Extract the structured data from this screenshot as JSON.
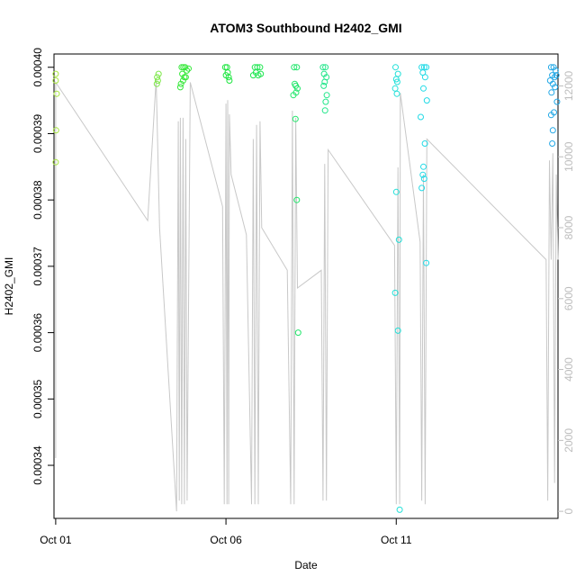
{
  "chart_data": {
    "type": "scatter",
    "title": "ATOM3 Southbound H2402_GMI",
    "xlabel": "Date",
    "ylabel": "H2402_GMI",
    "x_ticks": [
      {
        "day": 1,
        "label": "Oct 01"
      },
      {
        "day": 6,
        "label": "Oct 06"
      },
      {
        "day": 11,
        "label": "Oct 11"
      }
    ],
    "xlim": [
      0.95,
      15.75
    ],
    "ylim": [
      0.000332,
      0.000402
    ],
    "y_ticks": [
      {
        "value": 0.00034,
        "label": "0.00034"
      },
      {
        "value": 0.00035,
        "label": "0.00035"
      },
      {
        "value": 0.00036,
        "label": "0.00036"
      },
      {
        "value": 0.00037,
        "label": "0.00037"
      },
      {
        "value": 0.00038,
        "label": "0.00038"
      },
      {
        "value": 0.00039,
        "label": "0.00039"
      },
      {
        "value": 0.0004,
        "label": "0.00040"
      }
    ],
    "y2lim": [
      -200,
      12900
    ],
    "y2_ticks": [
      {
        "value": 0,
        "label": "0"
      },
      {
        "value": 2000,
        "label": "2000"
      },
      {
        "value": 4000,
        "label": "4000"
      },
      {
        "value": 6000,
        "label": "6000"
      },
      {
        "value": 8000,
        "label": "8000"
      },
      {
        "value": 10000,
        "label": "10000"
      },
      {
        "value": 12000,
        "label": "12000"
      }
    ],
    "points": [
      {
        "day": 1.0,
        "y": 0.000399,
        "color": "#a8e640"
      },
      {
        "day": 1.0,
        "y": 0.000398,
        "color": "#a8e640"
      },
      {
        "day": 1.03,
        "y": 0.000396,
        "color": "#a8e640"
      },
      {
        "day": 1.01,
        "y": 0.0003905,
        "color": "#a8e640"
      },
      {
        "day": 1.0,
        "y": 0.0003857,
        "color": "#a8e640"
      },
      {
        "day": 4.02,
        "y": 0.000399,
        "color": "#7ee84a"
      },
      {
        "day": 3.98,
        "y": 0.0003985,
        "color": "#7ee84a"
      },
      {
        "day": 4.0,
        "y": 0.000398,
        "color": "#7ee84a"
      },
      {
        "day": 3.97,
        "y": 0.0003975,
        "color": "#7ee84a"
      },
      {
        "day": 4.7,
        "y": 0.0004,
        "color": "#36e83a"
      },
      {
        "day": 4.75,
        "y": 0.0004,
        "color": "#36e83a"
      },
      {
        "day": 4.8,
        "y": 0.0004,
        "color": "#36e83a"
      },
      {
        "day": 4.85,
        "y": 0.0003995,
        "color": "#36e83a"
      },
      {
        "day": 4.72,
        "y": 0.000399,
        "color": "#36e83a"
      },
      {
        "day": 4.78,
        "y": 0.0003985,
        "color": "#36e83a"
      },
      {
        "day": 4.82,
        "y": 0.0003985,
        "color": "#36e83a"
      },
      {
        "day": 4.68,
        "y": 0.0003975,
        "color": "#36e83a"
      },
      {
        "day": 4.66,
        "y": 0.000397,
        "color": "#36e83a"
      },
      {
        "day": 4.9,
        "y": 0.0003998,
        "color": "#36e83a"
      },
      {
        "day": 4.74,
        "y": 0.000398,
        "color": "#36e83a"
      },
      {
        "day": 5.98,
        "y": 0.0004,
        "color": "#1ee640"
      },
      {
        "day": 6.03,
        "y": 0.0004,
        "color": "#1ee640"
      },
      {
        "day": 6.05,
        "y": 0.0003992,
        "color": "#1ee640"
      },
      {
        "day": 6.0,
        "y": 0.0003988,
        "color": "#1ee640"
      },
      {
        "day": 6.08,
        "y": 0.0003985,
        "color": "#1ee640"
      },
      {
        "day": 6.1,
        "y": 0.000398,
        "color": "#1ee640"
      },
      {
        "day": 6.85,
        "y": 0.0004,
        "color": "#1ee650"
      },
      {
        "day": 6.92,
        "y": 0.0004,
        "color": "#1ee650"
      },
      {
        "day": 7.0,
        "y": 0.0004,
        "color": "#1ee650"
      },
      {
        "day": 6.88,
        "y": 0.0003992,
        "color": "#1ee650"
      },
      {
        "day": 6.95,
        "y": 0.0003988,
        "color": "#1ee650"
      },
      {
        "day": 7.02,
        "y": 0.000399,
        "color": "#1ee650"
      },
      {
        "day": 6.8,
        "y": 0.0003988,
        "color": "#1ee650"
      },
      {
        "day": 8.0,
        "y": 0.0004,
        "color": "#20e66a"
      },
      {
        "day": 8.08,
        "y": 0.0004,
        "color": "#20e66a"
      },
      {
        "day": 8.02,
        "y": 0.0003975,
        "color": "#20e66a"
      },
      {
        "day": 8.05,
        "y": 0.0003972,
        "color": "#20e66a"
      },
      {
        "day": 8.1,
        "y": 0.0003968,
        "color": "#20e66a"
      },
      {
        "day": 7.98,
        "y": 0.0003958,
        "color": "#20e66a"
      },
      {
        "day": 8.06,
        "y": 0.0003962,
        "color": "#20e66a"
      },
      {
        "day": 8.04,
        "y": 0.0003922,
        "color": "#20e66a"
      },
      {
        "day": 8.08,
        "y": 0.00038,
        "color": "#20e66a"
      },
      {
        "day": 8.12,
        "y": 0.00036,
        "color": "#20e66a"
      },
      {
        "day": 8.85,
        "y": 0.0004,
        "color": "#22e68a"
      },
      {
        "day": 8.92,
        "y": 0.0004,
        "color": "#22e68a"
      },
      {
        "day": 8.88,
        "y": 0.000399,
        "color": "#22e68a"
      },
      {
        "day": 8.95,
        "y": 0.0003985,
        "color": "#22e68a"
      },
      {
        "day": 8.9,
        "y": 0.0003978,
        "color": "#22e68a"
      },
      {
        "day": 8.87,
        "y": 0.0003972,
        "color": "#22e68a"
      },
      {
        "day": 8.96,
        "y": 0.0003958,
        "color": "#22e68a"
      },
      {
        "day": 8.93,
        "y": 0.0003948,
        "color": "#22e68a"
      },
      {
        "day": 8.91,
        "y": 0.0003935,
        "color": "#22e68a"
      },
      {
        "day": 10.98,
        "y": 0.0004,
        "color": "#22e0d8"
      },
      {
        "day": 11.05,
        "y": 0.000399,
        "color": "#22e0d8"
      },
      {
        "day": 11.0,
        "y": 0.0003982,
        "color": "#22e0d8"
      },
      {
        "day": 11.03,
        "y": 0.0003978,
        "color": "#22e0d8"
      },
      {
        "day": 10.97,
        "y": 0.0003968,
        "color": "#22e0d8"
      },
      {
        "day": 11.02,
        "y": 0.000396,
        "color": "#22e0d8"
      },
      {
        "day": 11.0,
        "y": 0.0003812,
        "color": "#22e0d8"
      },
      {
        "day": 11.08,
        "y": 0.000374,
        "color": "#22e0d8"
      },
      {
        "day": 10.97,
        "y": 0.000366,
        "color": "#22e0d8"
      },
      {
        "day": 11.05,
        "y": 0.0003603,
        "color": "#22e0d8"
      },
      {
        "day": 11.1,
        "y": 0.0003333,
        "color": "#22e0d8"
      },
      {
        "day": 11.75,
        "y": 0.0004,
        "color": "#22dae6"
      },
      {
        "day": 11.82,
        "y": 0.0004,
        "color": "#22dae6"
      },
      {
        "day": 11.88,
        "y": 0.0004,
        "color": "#22dae6"
      },
      {
        "day": 11.78,
        "y": 0.0003992,
        "color": "#22dae6"
      },
      {
        "day": 11.85,
        "y": 0.0003985,
        "color": "#22dae6"
      },
      {
        "day": 11.8,
        "y": 0.0003968,
        "color": "#22dae6"
      },
      {
        "day": 11.9,
        "y": 0.000395,
        "color": "#22dae6"
      },
      {
        "day": 11.72,
        "y": 0.0003925,
        "color": "#22dae6"
      },
      {
        "day": 11.84,
        "y": 0.0003885,
        "color": "#22dae6"
      },
      {
        "day": 11.8,
        "y": 0.000385,
        "color": "#22dae6"
      },
      {
        "day": 11.78,
        "y": 0.0003838,
        "color": "#22dae6"
      },
      {
        "day": 11.82,
        "y": 0.0003832,
        "color": "#22dae6"
      },
      {
        "day": 11.75,
        "y": 0.0003818,
        "color": "#22dae6"
      },
      {
        "day": 11.88,
        "y": 0.0003705,
        "color": "#22dae6"
      },
      {
        "day": 15.55,
        "y": 0.0004,
        "color": "#22a8e6"
      },
      {
        "day": 15.62,
        "y": 0.0004,
        "color": "#22a8e6"
      },
      {
        "day": 15.68,
        "y": 0.0003995,
        "color": "#22a8e6"
      },
      {
        "day": 15.58,
        "y": 0.0003988,
        "color": "#22a8e6"
      },
      {
        "day": 15.65,
        "y": 0.0003985,
        "color": "#22a8e6"
      },
      {
        "day": 15.7,
        "y": 0.0003988,
        "color": "#22a8e6"
      },
      {
        "day": 15.52,
        "y": 0.000398,
        "color": "#22a8e6"
      },
      {
        "day": 15.6,
        "y": 0.0003975,
        "color": "#22a8e6"
      },
      {
        "day": 15.66,
        "y": 0.000397,
        "color": "#22a8e6"
      },
      {
        "day": 15.56,
        "y": 0.0003962,
        "color": "#22a8e6"
      },
      {
        "day": 15.72,
        "y": 0.0003948,
        "color": "#22a8e6"
      },
      {
        "day": 15.63,
        "y": 0.0003932,
        "color": "#22a8e6"
      },
      {
        "day": 15.55,
        "y": 0.0003928,
        "color": "#22a8e6"
      },
      {
        "day": 15.6,
        "y": 0.0003905,
        "color": "#22a8e6"
      },
      {
        "day": 15.58,
        "y": 0.0003885,
        "color": "#22a8e6"
      }
    ],
    "line_series": {
      "axis": "right",
      "color": "#c8c8c8",
      "description_points": [
        [
          1.0,
          1500
        ],
        [
          1.0,
          12100
        ],
        [
          3.7,
          8200
        ],
        [
          3.95,
          12200
        ],
        [
          4.05,
          8000
        ],
        [
          4.55,
          0
        ],
        [
          4.6,
          11000
        ],
        [
          4.63,
          300
        ],
        [
          4.66,
          11100
        ],
        [
          4.7,
          200
        ],
        [
          4.74,
          11100
        ],
        [
          4.78,
          200
        ],
        [
          4.82,
          10500
        ],
        [
          4.86,
          300
        ],
        [
          4.95,
          12100
        ],
        [
          5.9,
          8600
        ],
        [
          5.95,
          200
        ],
        [
          6.0,
          11500
        ],
        [
          6.03,
          200
        ],
        [
          6.05,
          11600
        ],
        [
          6.08,
          200
        ],
        [
          6.1,
          11200
        ],
        [
          6.15,
          9500
        ],
        [
          6.6,
          7800
        ],
        [
          6.75,
          200
        ],
        [
          6.8,
          10500
        ],
        [
          6.85,
          200
        ],
        [
          6.9,
          10900
        ],
        [
          6.95,
          200
        ],
        [
          7.0,
          11000
        ],
        [
          7.05,
          8000
        ],
        [
          7.8,
          6800
        ],
        [
          7.9,
          200
        ],
        [
          7.95,
          11300
        ],
        [
          8.0,
          200
        ],
        [
          8.05,
          11100
        ],
        [
          8.1,
          6300
        ],
        [
          8.8,
          6800
        ],
        [
          8.85,
          300
        ],
        [
          8.9,
          9800
        ],
        [
          8.95,
          300
        ],
        [
          9.0,
          10200
        ],
        [
          10.95,
          7500
        ],
        [
          11.0,
          200
        ],
        [
          11.05,
          9700
        ],
        [
          11.1,
          200
        ],
        [
          11.12,
          11800
        ],
        [
          11.7,
          7600
        ],
        [
          11.75,
          300
        ],
        [
          11.8,
          9500
        ],
        [
          11.85,
          200
        ],
        [
          11.9,
          10500
        ],
        [
          15.4,
          7100
        ],
        [
          15.45,
          300
        ],
        [
          15.5,
          9900
        ],
        [
          15.55,
          7100
        ],
        [
          15.6,
          10100
        ],
        [
          15.65,
          800
        ],
        [
          15.7,
          9500
        ],
        [
          15.75,
          7100
        ]
      ]
    },
    "grid": false,
    "legend": "none"
  }
}
